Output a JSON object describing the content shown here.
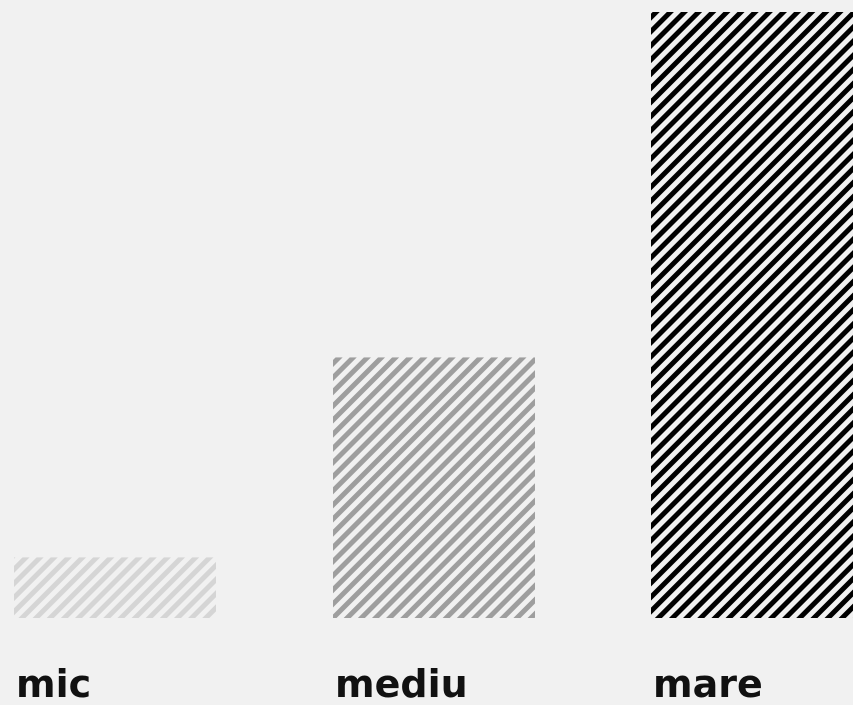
{
  "chart_data": {
    "type": "bar",
    "categories": [
      "mic",
      "mediu",
      "mare"
    ],
    "values": [
      1,
      4.3,
      10
    ],
    "ylim": [
      0,
      10
    ],
    "grid": false,
    "axes_visible": false,
    "bar_fill": "diagonal-stripes",
    "bar_colors": [
      "#d5d5d5",
      "#9e9e9e",
      "#000000"
    ]
  }
}
